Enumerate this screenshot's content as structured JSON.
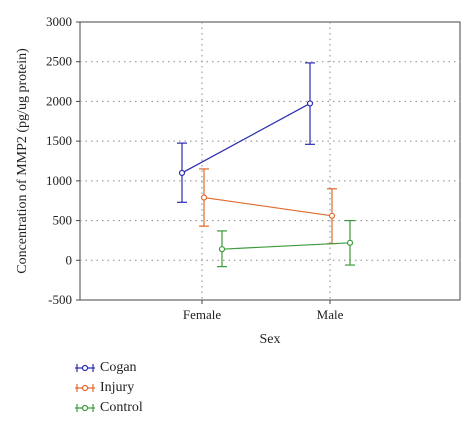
{
  "chart_data": {
    "type": "line",
    "categories": [
      "Female",
      "Male"
    ],
    "xlabel": "Sex",
    "ylabel": "Concentration of MMP2 (pg/ug protein)",
    "ylim": [
      -500,
      3000
    ],
    "yticks": [
      "3000",
      "2500",
      "2000",
      "1500",
      "1000",
      "500",
      "0",
      "-500"
    ],
    "grid": true,
    "series": [
      {
        "name": "Cogan",
        "color": "#2b2bb0",
        "values": [
          1100,
          1975
        ],
        "lower": [
          730,
          1460
        ],
        "upper": [
          1475,
          2485
        ]
      },
      {
        "name": "Injury",
        "color": "#e06a2c",
        "values": [
          790,
          560
        ],
        "lower": [
          430,
          210
        ],
        "upper": [
          1150,
          900
        ]
      },
      {
        "name": "Control",
        "color": "#3d9a3d",
        "values": [
          140,
          220
        ],
        "lower": [
          -80,
          -60
        ],
        "upper": [
          370,
          500
        ]
      }
    ],
    "legend_position": "below-left"
  }
}
